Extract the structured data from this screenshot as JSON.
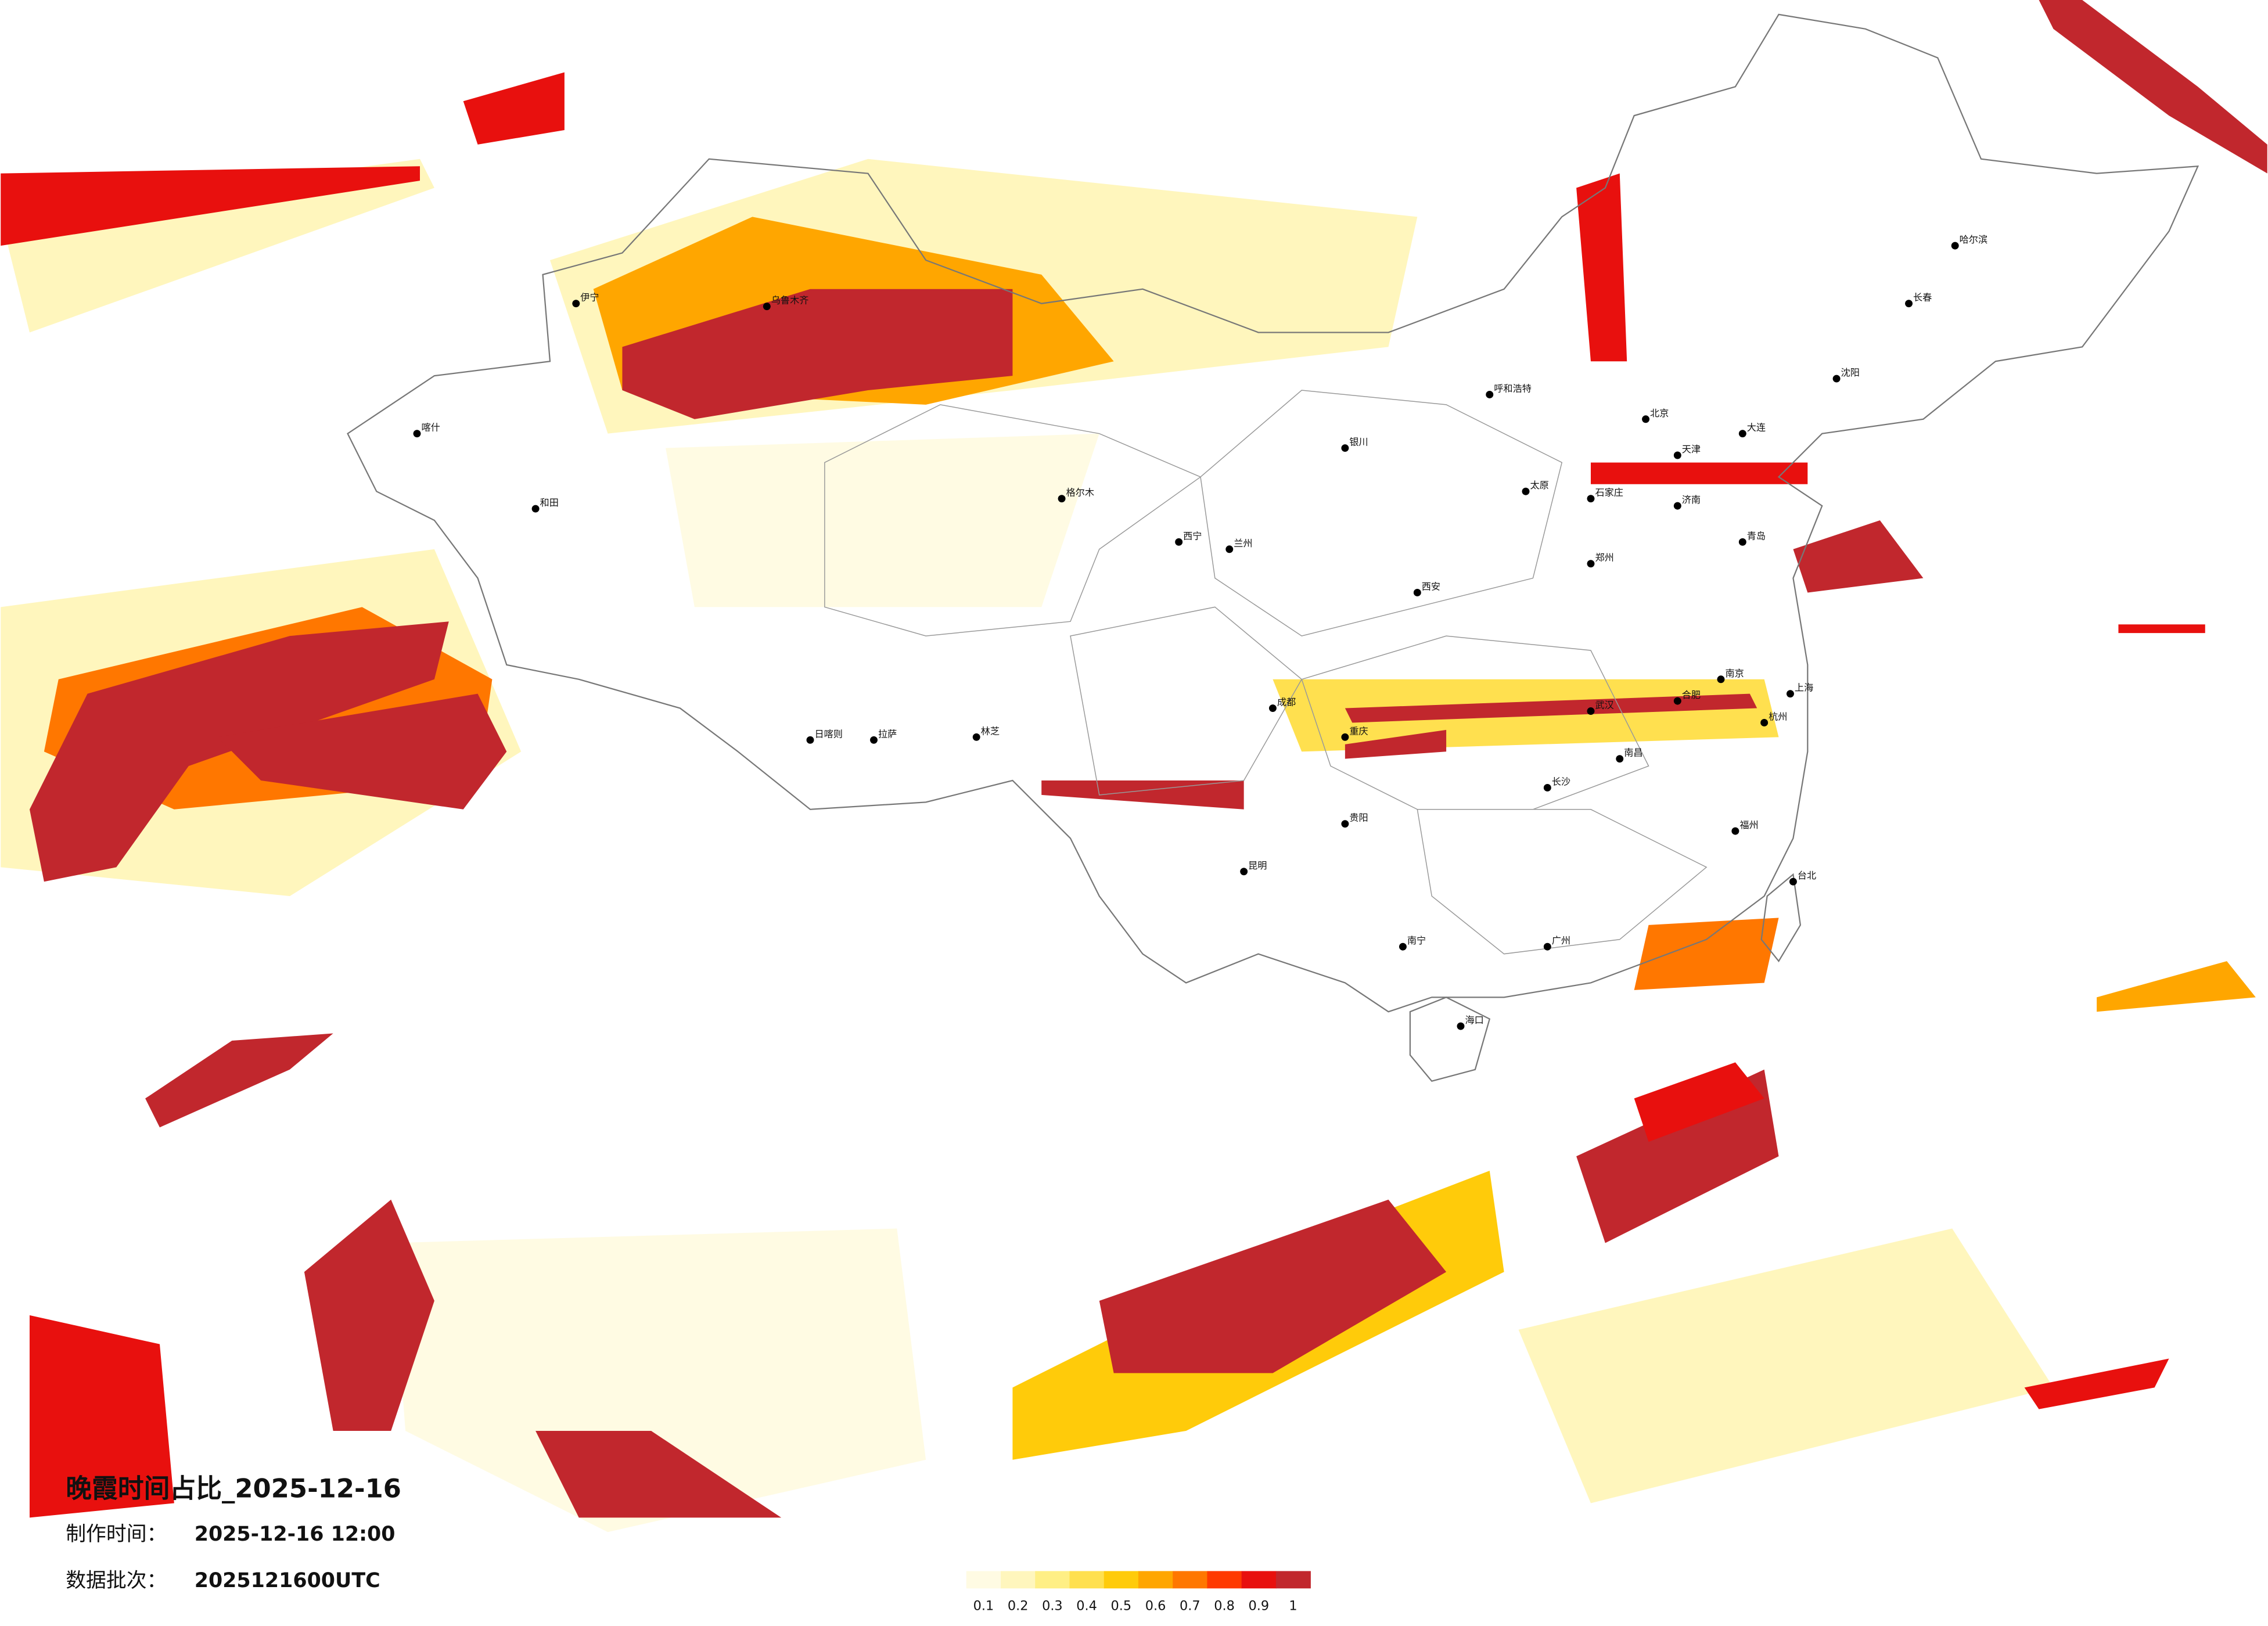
{
  "title": "晚霞时间占比_2025-12-16",
  "made_time_label": "制作时间：",
  "made_time": "2025-12-16 12:00",
  "batch_label": "数据批次：",
  "batch": "2025121600UTC",
  "legend": {
    "ticks": [
      0.1,
      0.2,
      0.3,
      0.4,
      0.5,
      0.6,
      0.7,
      0.8,
      0.9,
      1
    ],
    "colors": [
      "#fffbe3",
      "#fff6bd",
      "#ffef85",
      "#ffe04f",
      "#ffcb0a",
      "#ffa600",
      "#ff7700",
      "#ff3a00",
      "#e8100e",
      "#c1272d"
    ]
  },
  "cities": [
    "北京",
    "天津",
    "上海",
    "南京",
    "武汉",
    "成都",
    "重庆",
    "西安",
    "兰州",
    "西宁",
    "拉萨",
    "乌鲁木齐",
    "哈尔滨",
    "长春",
    "沈阳",
    "呼和浩特",
    "太原",
    "郑州",
    "济南",
    "长沙",
    "南昌",
    "福州",
    "广州",
    "南宁",
    "昆明",
    "贵阳",
    "海口",
    "台北",
    "杭州",
    "合肥",
    "石家庄",
    "银川",
    "喀什",
    "和田",
    "伊宁",
    "格尔木",
    "日喀则",
    "林芝",
    "大连",
    "青岛"
  ]
}
